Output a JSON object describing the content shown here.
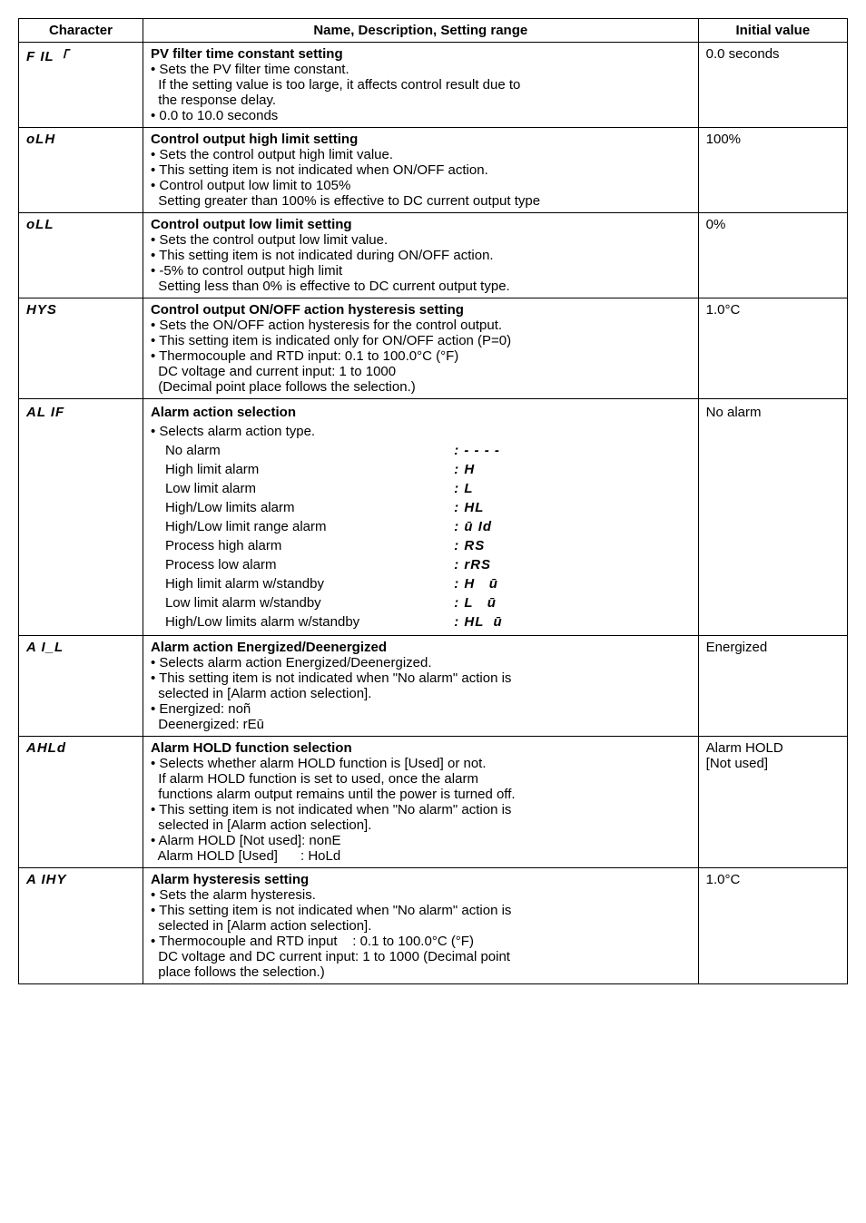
{
  "header": {
    "c1": "Character",
    "c2": "Name, Description, Setting range",
    "c3": "Initial value"
  },
  "rows": [
    {
      "char": "F IL「",
      "title": "PV filter time constant setting",
      "lines": [
        "• Sets the PV filter time constant.",
        "  If the setting value is too large, it affects control result due to",
        "  the response delay.",
        "• 0.0 to 10.0 seconds"
      ],
      "init": "0.0 seconds"
    },
    {
      "char": "oLH",
      "title": "Control output high limit setting",
      "lines": [
        "• Sets the control output high limit value.",
        "• This setting item is not indicated when ON/OFF action.",
        "• Control output low limit to 105%",
        "  Setting greater than 100% is effective to DC current output type"
      ],
      "init": "100%"
    },
    {
      "char": "oLL",
      "title": "Control output low limit setting",
      "lines": [
        "• Sets the control output low limit value.",
        "• This setting item is not indicated during ON/OFF action.",
        "• -5% to control output high limit",
        "  Setting less than 0% is effective to DC current output type."
      ],
      "init": "0%"
    },
    {
      "char": "HYS",
      "title": "Control output ON/OFF action hysteresis setting",
      "lines": [
        "• Sets the ON/OFF action hysteresis for the control output.",
        "• This setting item is indicated only for ON/OFF action (P=0)",
        "• Thermocouple and RTD input: 0.1 to 100.0°C (°F)",
        "  DC voltage and current input: 1 to 1000",
        "  (Decimal point place follows the selection.)"
      ],
      "init": "1.0°C"
    },
    {
      "char": "AL IF",
      "title": "Alarm action selection",
      "pre": "• Selects alarm action type.",
      "alarm_items": [
        {
          "label": "No alarm",
          "code": ": - - - -"
        },
        {
          "label": "High limit alarm",
          "code": ": H"
        },
        {
          "label": "Low limit alarm",
          "code": ": L"
        },
        {
          "label": "High/Low limits alarm",
          "code": ": HL"
        },
        {
          "label": "High/Low limit range alarm",
          "code": ": ū Id"
        },
        {
          "label": "Process high alarm",
          "code": ": RS"
        },
        {
          "label": "Process low alarm",
          "code": ": rRS"
        },
        {
          "label": "High limit alarm w/standby",
          "code": ": H   ū"
        },
        {
          "label": "Low limit alarm w/standby",
          "code": ": L   ū"
        },
        {
          "label": "High/Low limits alarm w/standby",
          "code": ": HL  ū"
        }
      ],
      "init": "No alarm"
    },
    {
      "char": "A I_L",
      "title": "Alarm action Energized/Deenergized",
      "lines": [
        "• Selects alarm action Energized/Deenergized.",
        "• This setting item is not indicated when \"No alarm\" action is",
        "  selected in [Alarm action selection].",
        "• Energized: noñ",
        "  Deenergized: rEū"
      ],
      "init": "Energized"
    },
    {
      "char": "AHLd",
      "title": "Alarm HOLD function selection",
      "lines": [
        "• Selects whether alarm HOLD function is [Used] or not.",
        "  If alarm HOLD function is set to used, once the alarm",
        "  functions alarm output remains until the power is turned off.",
        "• This setting item is not indicated when \"No alarm\" action is",
        "  selected in [Alarm action selection].",
        "• Alarm HOLD [Not used]: nonE",
        "  Alarm HOLD [Used]      : HoLd"
      ],
      "init": "Alarm HOLD\n[Not used]"
    },
    {
      "char": "A IHY",
      "title": "Alarm hysteresis setting",
      "lines": [
        "• Sets the alarm hysteresis.",
        "• This setting item is not indicated when \"No alarm\" action is",
        "  selected in [Alarm action selection].",
        "• Thermocouple and RTD input    : 0.1 to 100.0°C (°F)",
        "  DC voltage and DC current input: 1 to 1000 (Decimal point",
        "  place follows the selection.)"
      ],
      "init": "1.0°C"
    }
  ]
}
